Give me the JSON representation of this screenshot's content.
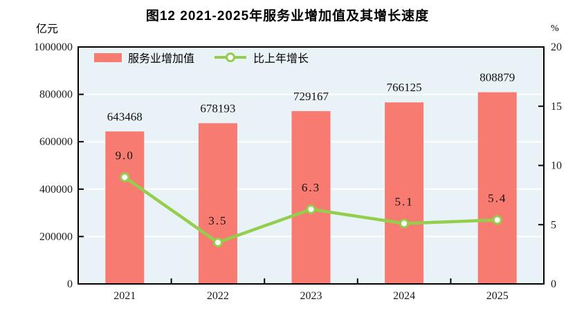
{
  "chart_data": {
    "type": "bar",
    "subtype": "bar+line-combo",
    "title": "图12  2021-2025年服务业增加值及其增长速度",
    "categories": [
      "2021",
      "2022",
      "2023",
      "2024",
      "2025"
    ],
    "series": [
      {
        "name": "服务业增加值",
        "type": "bar",
        "axis": "left",
        "values": [
          643468,
          678193,
          729167,
          766125,
          808879
        ],
        "color": "#F87B72"
      },
      {
        "name": "比上年增长",
        "type": "line",
        "axis": "right",
        "values": [
          9.0,
          3.5,
          6.3,
          5.1,
          5.4
        ],
        "labels": [
          "9.0",
          "3.5",
          "6.3",
          "5.1",
          "5.4"
        ],
        "color": "#93CE4D"
      }
    ],
    "left_axis": {
      "unit": "亿元",
      "min": 0,
      "max": 1000000,
      "ticks": [
        0,
        200000,
        400000,
        600000,
        800000,
        1000000
      ]
    },
    "right_axis": {
      "unit": "%",
      "min": 0,
      "max": 20,
      "ticks": [
        0,
        5,
        10,
        15,
        20
      ]
    },
    "grid": true,
    "gridline_color": "#ffffff",
    "plot_bg": "#E9F2F7",
    "frame_color": "#000000",
    "legend_position": "top-left-inside",
    "marker": {
      "fill": "#ffffff",
      "stroke": "#93CE4D"
    }
  }
}
